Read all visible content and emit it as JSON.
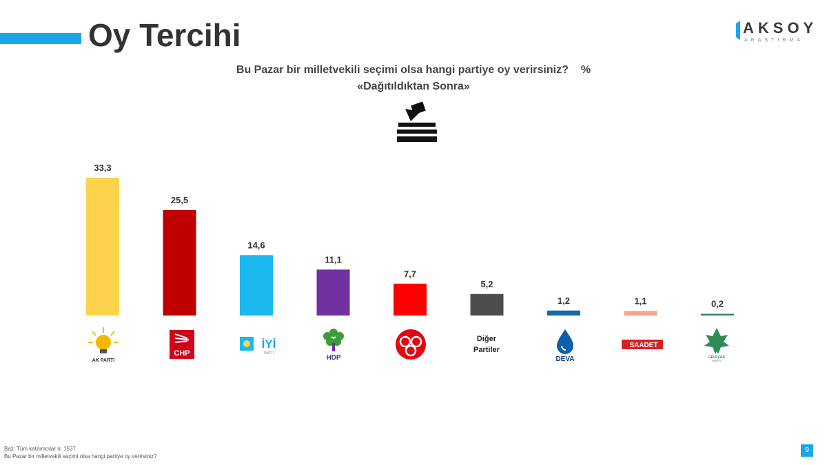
{
  "header": {
    "title": "Oy Tercihi",
    "accent_color": "#1aa7e8"
  },
  "logo": {
    "name": "AKSOY",
    "sub": "ARAŞTIRMA"
  },
  "question": {
    "line1": "Bu Pazar bir milletvekili seçimi olsa hangi partiye oy verirsiniz?",
    "unit": "%",
    "line2": "«Dağıtıldıktan Sonra»"
  },
  "chart_data": {
    "type": "bar",
    "categories": [
      "AK PARTİ",
      "CHP",
      "İYİ",
      "HDP",
      "MHP",
      "Diğer Partiler",
      "DEVA",
      "SAADET",
      "GELECEK"
    ],
    "values": [
      33.3,
      25.5,
      14.6,
      11.1,
      7.7,
      5.2,
      1.2,
      1.1,
      0.2
    ],
    "labels": [
      "33,3",
      "25,5",
      "14,6",
      "11,1",
      "7,7",
      "5,2",
      "1,2",
      "1,1",
      "0,2"
    ],
    "colors": [
      "#fcd34a",
      "#c00000",
      "#1ab8ef",
      "#7030a0",
      "#ff0000",
      "#4d4d4d",
      "#1565b0",
      "#f4a58a",
      "#2e8b57"
    ],
    "ylim": [
      0,
      33.3
    ],
    "grid": false,
    "legend": "none"
  },
  "party_logos": [
    {
      "icon": "akp-logo",
      "text": "AK PARTİ"
    },
    {
      "icon": "chp-logo",
      "text": "CHP"
    },
    {
      "icon": "iyi-logo",
      "text": "İYİ",
      "sub": "PARTİ"
    },
    {
      "icon": "hdp-logo",
      "text": "HDP"
    },
    {
      "icon": "mhp-logo"
    },
    {
      "text_line1": "Diğer",
      "text_line2": "Partiler"
    },
    {
      "icon": "deva-logo",
      "text": "DEVA"
    },
    {
      "icon": "saadet-logo",
      "text": "SAADET"
    },
    {
      "icon": "gelecek-logo",
      "text": "GELECEK",
      "sub": "PARTİSİ"
    }
  ],
  "footer": {
    "base": "Baz: Tüm katılımcılar n: 1537",
    "question": "Bu Pazar bir milletvekili seçimi olsa hangi partiye oy verirsiniz?"
  },
  "page_number": "9"
}
